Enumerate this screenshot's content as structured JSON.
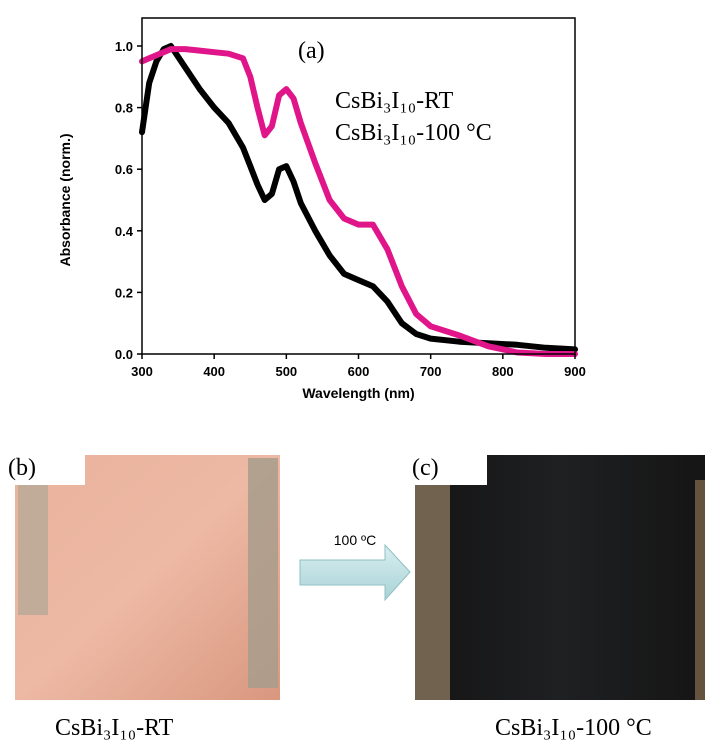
{
  "chart_data": {
    "type": "line",
    "title": "(a)",
    "x_label": "Wavelength (nm)",
    "y_label": "Absorbance (norm.)",
    "x": [
      300,
      310,
      320,
      330,
      340,
      360,
      380,
      400,
      420,
      440,
      450,
      460,
      470,
      480,
      490,
      500,
      510,
      520,
      540,
      560,
      580,
      600,
      620,
      640,
      660,
      680,
      700,
      740,
      780,
      820,
      860,
      900
    ],
    "series": [
      {
        "name": "CsBi₃I₁₀-RT",
        "color": "#000000",
        "values": [
          0.72,
          0.88,
          0.95,
          0.99,
          1.0,
          0.93,
          0.86,
          0.8,
          0.75,
          0.67,
          0.61,
          0.55,
          0.5,
          0.52,
          0.6,
          0.61,
          0.56,
          0.49,
          0.4,
          0.32,
          0.26,
          0.24,
          0.22,
          0.17,
          0.1,
          0.065,
          0.05,
          0.04,
          0.035,
          0.03,
          0.02,
          0.015
        ]
      },
      {
        "name": "CsBi₃I₁₀-100 °C",
        "color": "#e0158a",
        "values": [
          0.95,
          0.96,
          0.97,
          0.98,
          0.99,
          0.99,
          0.985,
          0.98,
          0.975,
          0.96,
          0.9,
          0.8,
          0.71,
          0.74,
          0.84,
          0.86,
          0.83,
          0.75,
          0.62,
          0.5,
          0.44,
          0.42,
          0.42,
          0.34,
          0.22,
          0.13,
          0.09,
          0.06,
          0.025,
          0.005,
          0,
          0
        ]
      }
    ],
    "xlim": [
      300,
      900
    ],
    "ylim": [
      0,
      1.0
    ],
    "xticks": [
      300,
      400,
      500,
      600,
      700,
      800,
      900
    ],
    "yticks": [
      {
        "value": 0,
        "label": "0.0"
      },
      0.2,
      0.4,
      0.6,
      0.8,
      {
        "value": 1.0,
        "label": "1.0"
      }
    ],
    "grid": false
  },
  "panels": [
    {
      "label": "(b)",
      "caption": "CsBi₃I₁₀-RT"
    },
    {
      "label": "(c)",
      "caption": "CsBi₃I₁₀-100 °C"
    }
  ],
  "arrow_label": "100 ºC"
}
